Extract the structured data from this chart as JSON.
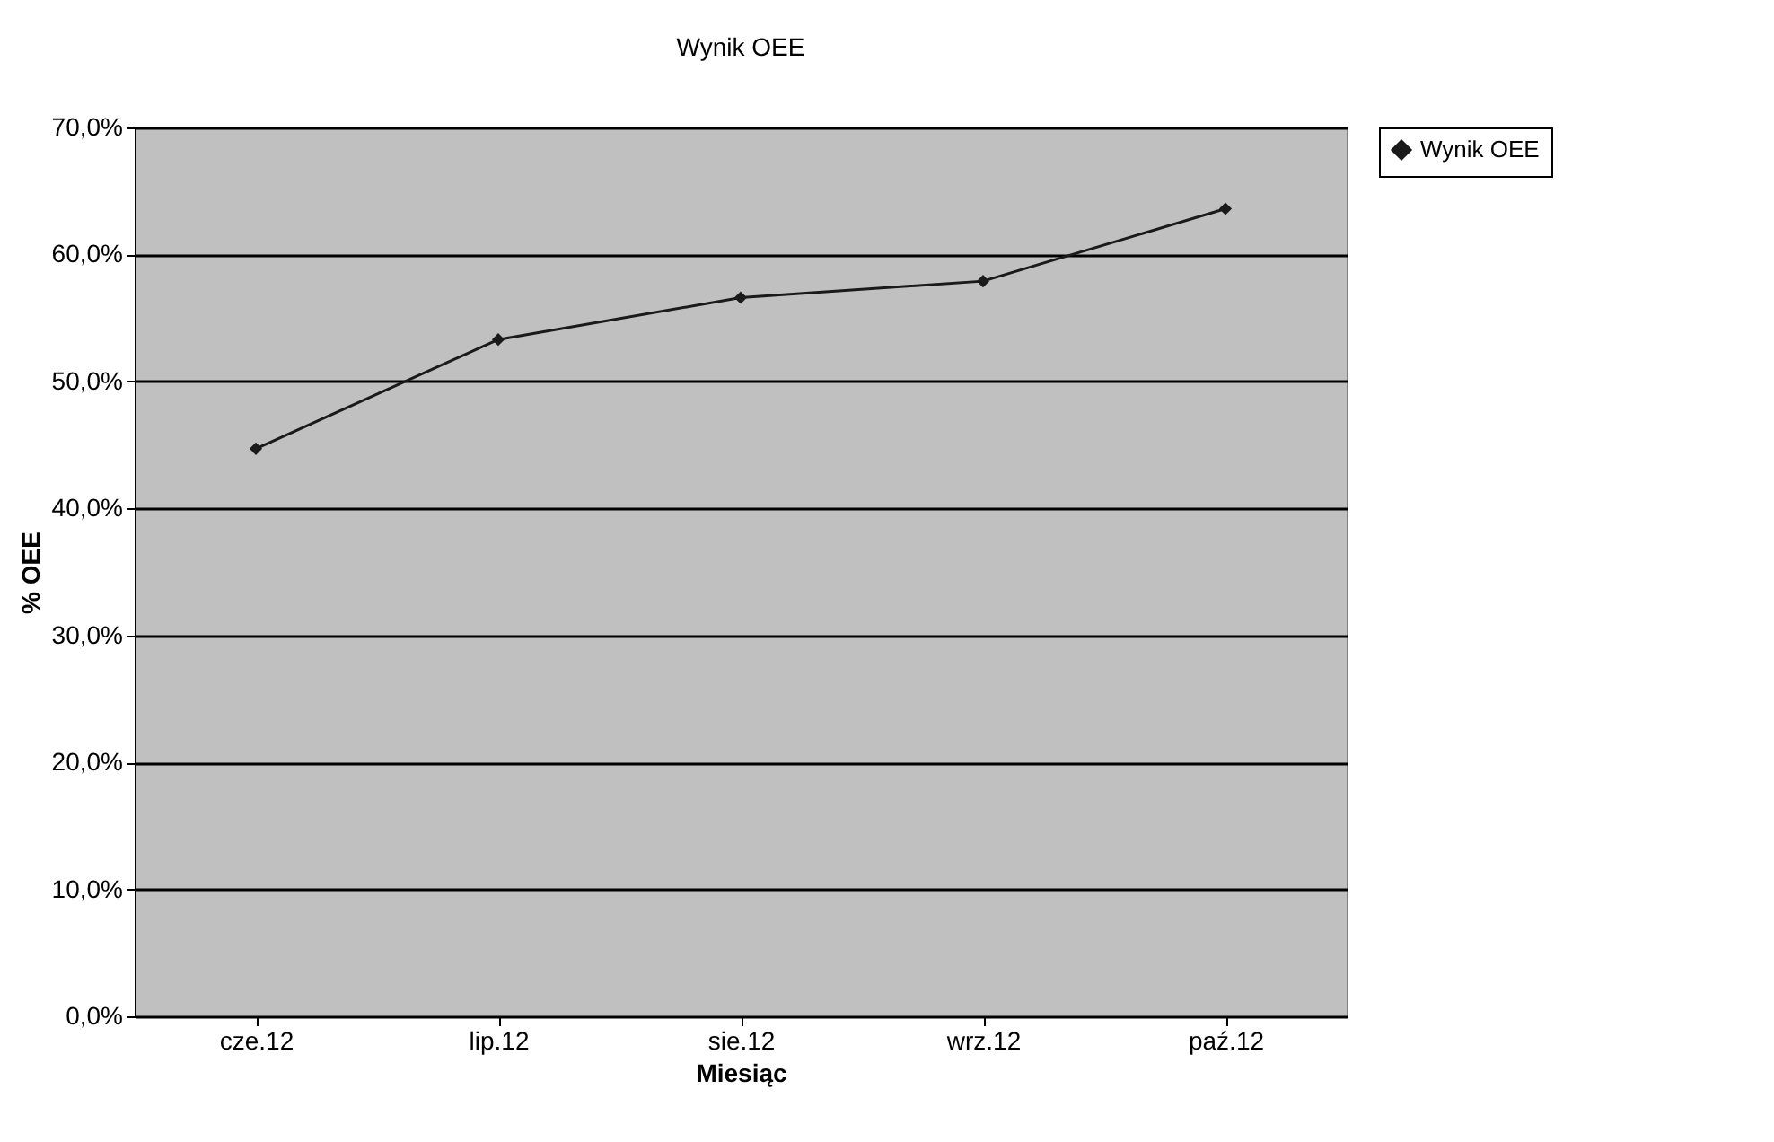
{
  "chart_data": {
    "type": "line",
    "title": "Wynik OEE",
    "xlabel": "Miesiąc",
    "ylabel": "% OEE",
    "categories": [
      "cze.12",
      "lip.12",
      "sie.12",
      "wrz.12",
      "paź.12"
    ],
    "series": [
      {
        "name": "Wynik OEE",
        "color": "#1a1a1a",
        "values": [
          44.7,
          53.3,
          56.6,
          57.9,
          63.6
        ]
      }
    ],
    "ylim": [
      0,
      70
    ],
    "yticks": [
      {
        "value": 0,
        "label": "0,0%"
      },
      {
        "value": 10,
        "label": "10,0%"
      },
      {
        "value": 20,
        "label": "20,0%"
      },
      {
        "value": 30,
        "label": "30,0%"
      },
      {
        "value": 40,
        "label": "40,0%"
      },
      {
        "value": 50,
        "label": "50,0%"
      },
      {
        "value": 60,
        "label": "60,0%"
      },
      {
        "value": 70,
        "label": "70,0%"
      }
    ],
    "grid": "y",
    "legend": "right",
    "marker": "diamond",
    "line_style": "solid"
  }
}
